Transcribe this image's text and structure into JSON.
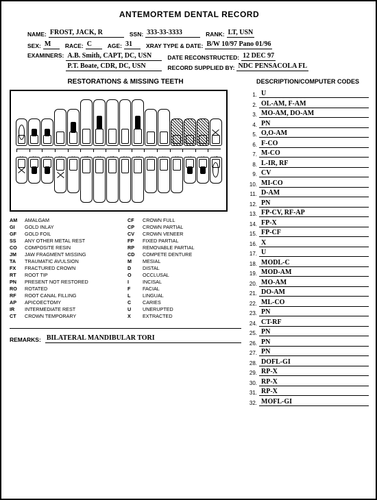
{
  "title": "ANTEMORTEM DENTAL RECORD",
  "header": {
    "name_lbl": "NAME:",
    "name": "FROST, JACK, R",
    "ssn_lbl": "SSN:",
    "ssn": "333-33-3333",
    "rank_lbl": "RANK:",
    "rank": "LT, USN",
    "sex_lbl": "SEX:",
    "sex": "M",
    "race_lbl": "RACE:",
    "race": "C",
    "age_lbl": "AGE:",
    "age": "31",
    "xray_lbl": "XRAY TYPE & DATE:",
    "xray": "B/W 10/97 Pano 01/96",
    "exam_lbl": "EXAMINERS:",
    "exam1": "A.B. Smith, CAPT, DC, USN",
    "exam2": "P.T. Boate, CDR, DC, USN",
    "date_lbl": "DATE RECONSTRUCTED:",
    "date": "12 DEC 97",
    "supplied_lbl": "RECORD SUPPLIED BY:",
    "supplied": "NDC PENSACOLA FL"
  },
  "section_restorations": "RESTORATIONS & MISSING TEETH",
  "section_codes": "DESCRIPTION/COMPUTER CODES",
  "tooth_numbers": [
    "1",
    "2",
    "3",
    "4",
    "5",
    "6",
    "7",
    "8",
    "9",
    "10",
    "11",
    "12",
    "13",
    "14",
    "15",
    "16"
  ],
  "tooth_numbers_lower": [
    "32",
    "31",
    "30",
    "29",
    "28",
    "27",
    "26",
    "25",
    "24",
    "23",
    "22",
    "21",
    "20",
    "19",
    "18",
    "17"
  ],
  "teeth": {
    "upper": [
      {
        "h": "short",
        "m": "mk-u"
      },
      {
        "h": "short",
        "m": "mk-fill"
      },
      {
        "h": "short",
        "m": "mk-fill"
      },
      {
        "h": "med",
        "m": ""
      },
      {
        "h": "med",
        "m": "mk-fill"
      },
      {
        "h": "tall",
        "m": ""
      },
      {
        "h": "tall",
        "m": "mk-fill"
      },
      {
        "h": "tall",
        "m": ""
      },
      {
        "h": "tall",
        "m": ""
      },
      {
        "h": "tall",
        "m": "mk-fill"
      },
      {
        "h": "med",
        "m": ""
      },
      {
        "h": "med",
        "m": ""
      },
      {
        "h": "short",
        "m": "mk-hatch"
      },
      {
        "h": "short",
        "m": "mk-hatch"
      },
      {
        "h": "short",
        "m": "mk-hatch"
      },
      {
        "h": "short",
        "m": "mk-x"
      }
    ],
    "lower": [
      {
        "h": "short",
        "m": "mk-x"
      },
      {
        "h": "short",
        "m": "mk-fill"
      },
      {
        "h": "short",
        "m": "mk-fill"
      },
      {
        "h": "med",
        "m": "mk-x"
      },
      {
        "h": "med",
        "m": ""
      },
      {
        "h": "tall",
        "m": ""
      },
      {
        "h": "tall",
        "m": ""
      },
      {
        "h": "tall",
        "m": ""
      },
      {
        "h": "tall",
        "m": ""
      },
      {
        "h": "tall",
        "m": ""
      },
      {
        "h": "med",
        "m": ""
      },
      {
        "h": "med",
        "m": ""
      },
      {
        "h": "med",
        "m": ""
      },
      {
        "h": "short",
        "m": "mk-fill"
      },
      {
        "h": "short",
        "m": "mk-fill"
      },
      {
        "h": "short",
        "m": "mk-u"
      }
    ]
  },
  "legend": {
    "col1": [
      {
        "c": "AM",
        "d": "AMALGAM"
      },
      {
        "c": "GI",
        "d": "GOLD INLAY"
      },
      {
        "c": "GF",
        "d": "GOLD FOIL"
      },
      {
        "c": "SS",
        "d": "ANY OTHER METAL REST"
      },
      {
        "c": "CO",
        "d": "COMPOSITE RESIN"
      },
      {
        "c": "JM",
        "d": "JAW FRAGMENT MISSING"
      },
      {
        "c": "TA",
        "d": "TRAUMATIC AVULSION"
      },
      {
        "c": "FX",
        "d": "FRACTURED CROWN"
      },
      {
        "c": "RT",
        "d": "ROOT TIP"
      },
      {
        "c": "PN",
        "d": "PRESENT NOT RESTORED"
      },
      {
        "c": "RO",
        "d": "ROTATED"
      },
      {
        "c": "RF",
        "d": "ROOT CANAL FILLING"
      },
      {
        "c": "AP",
        "d": "APICOECTOMY"
      },
      {
        "c": "IR",
        "d": "INTERMEDIATE REST"
      },
      {
        "c": "CT",
        "d": "CROWN TEMPORARY"
      }
    ],
    "col2": [
      {
        "c": "CF",
        "d": "CROWN FULL"
      },
      {
        "c": "CP",
        "d": "CROWN PARTIAL"
      },
      {
        "c": "CV",
        "d": "CROWN VENEER"
      },
      {
        "c": "FP",
        "d": "FIXED PARTIAL"
      },
      {
        "c": "RP",
        "d": "REMOVABLE PARTIAL"
      },
      {
        "c": "CD",
        "d": "COMPETE DENTURE"
      },
      {
        "c": "M",
        "d": "MESIAL"
      },
      {
        "c": "D",
        "d": "DISTAL"
      },
      {
        "c": "O",
        "d": "OCCLUSAL"
      },
      {
        "c": "I",
        "d": "INCISAL"
      },
      {
        "c": "F",
        "d": "FACIAL"
      },
      {
        "c": "L",
        "d": "LINGUAL"
      },
      {
        "c": "C",
        "d": "CARIES"
      },
      {
        "c": "U",
        "d": "UNERUPTED"
      },
      {
        "c": "X",
        "d": "EXTRACTED"
      }
    ]
  },
  "remarks_lbl": "REMARKS:",
  "remarks": "BILATERAL MANDIBULAR TORI",
  "codes": [
    "U",
    "OL-AM, F-AM",
    "MO-AM, DO-AM",
    "PN",
    "O,O-AM",
    "F-CO",
    "M-CO",
    "L-IR, RF",
    "CV",
    "MI-CO",
    "D-AM",
    "PN",
    "FP-CV, RF-AP",
    "FP-X",
    "FP-CF",
    "X",
    "U",
    "MODL-C",
    "MOD-AM",
    "MO-AM",
    "DO-AM",
    "ML-CO",
    "PN",
    "CT-RF",
    "PN",
    "PN",
    "PN",
    "DOFL-GI",
    "RP-X",
    "RP-X",
    "RP-X",
    "MOFL-GI"
  ]
}
